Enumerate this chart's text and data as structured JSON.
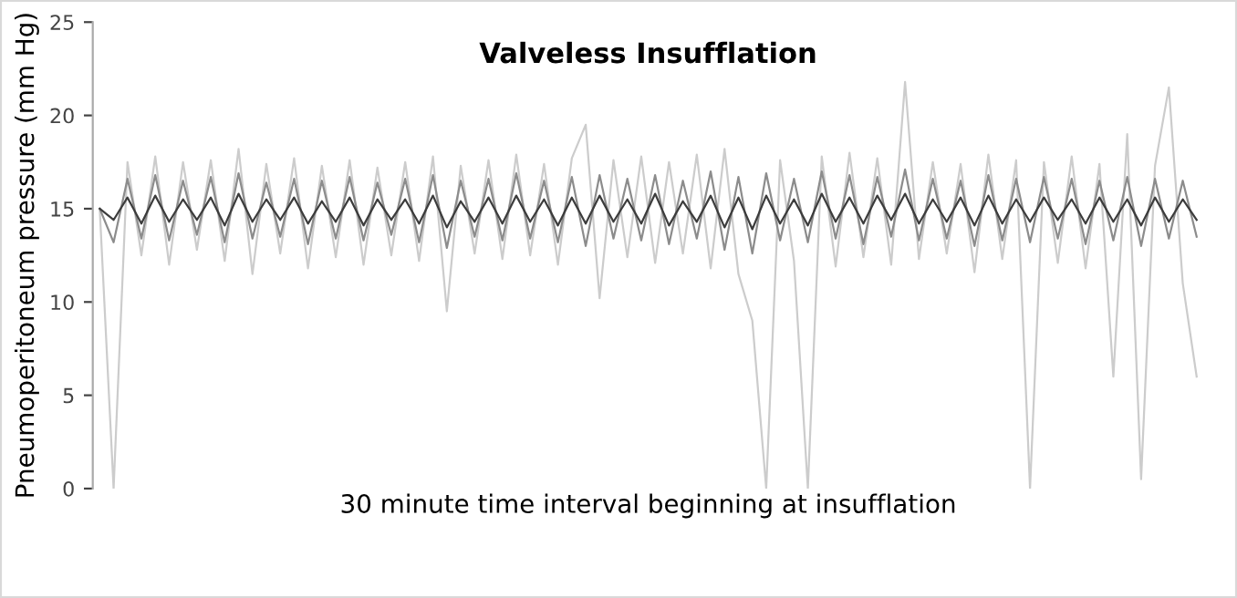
{
  "chart_data": {
    "type": "line",
    "title": "Valveless Insufflation",
    "xlabel": "30 minute time interval beginning at insufflation",
    "ylabel": "Pneumoperitoneum pressure (mm Hg)",
    "categories": [
      null,
      null,
      null,
      null,
      null,
      null,
      null,
      null,
      null,
      null,
      null,
      null,
      null,
      null,
      null,
      null,
      null,
      null,
      null,
      null,
      null,
      null,
      null,
      null,
      null,
      null,
      null,
      null,
      null,
      null,
      null,
      null,
      null,
      null,
      null,
      null,
      null,
      null,
      null,
      null,
      null,
      null,
      null,
      null,
      null,
      null,
      null,
      null,
      null,
      null,
      null,
      null,
      null,
      null,
      null,
      null,
      null,
      null,
      null,
      null,
      null,
      null,
      null,
      null,
      null,
      null,
      null,
      null,
      null,
      null,
      null,
      null,
      null,
      null,
      null,
      null,
      null,
      null,
      null,
      null
    ],
    "series": [
      {
        "color": "#cccccc",
        "values": [
          15,
          0,
          17.5,
          12.5,
          17.8,
          12,
          17.5,
          12.8,
          17.6,
          12.2,
          18.2,
          11.5,
          17.4,
          12.6,
          17.7,
          11.8,
          17.3,
          12.4,
          17.6,
          12,
          17.2,
          12.5,
          17.5,
          12.2,
          17.8,
          9.5,
          17.3,
          12.6,
          17.6,
          12.3,
          17.9,
          12.5,
          17.4,
          12,
          17.7,
          19.5,
          10.2,
          17.6,
          12.4,
          17.8,
          12.1,
          17.5,
          12.6,
          17.9,
          11.8,
          18.2,
          11.5,
          9,
          0,
          17.6,
          12.2,
          0,
          17.8,
          11.9,
          18,
          12.4,
          17.7,
          12,
          21.8,
          12.3,
          17.5,
          12.6,
          17.4,
          11.6,
          17.9,
          12.3,
          17.6,
          0,
          17.5,
          12.1,
          17.8,
          11.8,
          17.4,
          6,
          19,
          0.5,
          17.3,
          21.5,
          11,
          6
        ]
      },
      {
        "color": "#8c8c8c",
        "values": [
          15,
          13.2,
          16.6,
          13.4,
          16.8,
          13.3,
          16.5,
          13.6,
          16.7,
          13.2,
          16.9,
          13.4,
          16.4,
          13.5,
          16.6,
          13.1,
          16.5,
          13.4,
          16.7,
          13.3,
          16.4,
          13.6,
          16.6,
          13.2,
          16.8,
          12.9,
          16.5,
          13.5,
          16.6,
          13.3,
          16.9,
          13.4,
          16.5,
          13.2,
          16.7,
          13,
          16.8,
          13.4,
          16.6,
          13.3,
          16.8,
          13.1,
          16.5,
          13.4,
          17,
          12.8,
          16.7,
          12.6,
          16.9,
          13.3,
          16.6,
          13.2,
          17,
          13.4,
          16.8,
          13.1,
          16.7,
          13.5,
          17.1,
          13.3,
          16.6,
          13.4,
          16.5,
          13,
          16.8,
          13.3,
          16.6,
          13.2,
          16.7,
          13.4,
          16.6,
          13.1,
          16.5,
          13.3,
          16.7,
          13,
          16.6,
          13.4,
          16.5,
          13.5
        ]
      },
      {
        "color": "#3c3c3c",
        "values": [
          15,
          14.4,
          15.6,
          14.2,
          15.7,
          14.3,
          15.5,
          14.4,
          15.6,
          14.1,
          15.8,
          14.3,
          15.5,
          14.4,
          15.6,
          14.2,
          15.4,
          14.3,
          15.6,
          14.1,
          15.5,
          14.4,
          15.5,
          14.2,
          15.7,
          14,
          15.4,
          14.3,
          15.6,
          14.2,
          15.7,
          14.3,
          15.5,
          14.1,
          15.6,
          14.2,
          15.7,
          14.3,
          15.5,
          14.2,
          15.8,
          14.1,
          15.4,
          14.3,
          15.7,
          14,
          15.6,
          13.9,
          15.7,
          14.2,
          15.5,
          14.1,
          15.8,
          14.3,
          15.6,
          14.2,
          15.7,
          14.4,
          15.8,
          14.2,
          15.5,
          14.3,
          15.6,
          14.1,
          15.7,
          14.2,
          15.5,
          14.3,
          15.6,
          14.4,
          15.5,
          14.2,
          15.6,
          14.3,
          15.5,
          14.1,
          15.6,
          14.3,
          15.5,
          14.4
        ]
      }
    ],
    "ylim": [
      0,
      25
    ],
    "yticks": [
      0,
      5,
      10,
      15,
      20,
      25
    ],
    "grid": false,
    "legend": false,
    "marker": "none",
    "line_style": "solid",
    "tick_labels": "y"
  }
}
